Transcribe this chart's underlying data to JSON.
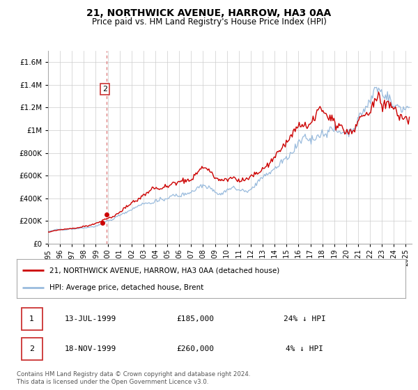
{
  "title": "21, NORTHWICK AVENUE, HARROW, HA3 0AA",
  "subtitle": "Price paid vs. HM Land Registry's House Price Index (HPI)",
  "legend_label_red": "21, NORTHWICK AVENUE, HARROW, HA3 0AA (detached house)",
  "legend_label_blue": "HPI: Average price, detached house, Brent",
  "transaction1_date": "13-JUL-1999",
  "transaction1_price": "£185,000",
  "transaction1_hpi": "24% ↓ HPI",
  "transaction2_date": "18-NOV-1999",
  "transaction2_price": "£260,000",
  "transaction2_hpi": "4% ↓ HPI",
  "footnote1": "Contains HM Land Registry data © Crown copyright and database right 2024.",
  "footnote2": "This data is licensed under the Open Government Licence v3.0.",
  "xmin_year": 1995.0,
  "xmax_year": 2025.5,
  "ymin": 0,
  "ymax": 1700000,
  "yticks": [
    0,
    200000,
    400000,
    600000,
    800000,
    1000000,
    1200000,
    1400000,
    1600000
  ],
  "ytick_labels": [
    "£0",
    "£200K",
    "£400K",
    "£600K",
    "£800K",
    "£1M",
    "£1.2M",
    "£1.4M",
    "£1.6M"
  ],
  "red_color": "#cc0000",
  "blue_color": "#99bbdd",
  "dotted_line_color": "#e08080",
  "marker1_year": 1999.53,
  "marker2_year": 1999.88,
  "marker1_value": 185000,
  "marker2_value": 260000,
  "background_color": "#ffffff",
  "grid_color": "#cccccc",
  "xticks": [
    1995,
    1996,
    1997,
    1998,
    1999,
    2000,
    2001,
    2002,
    2003,
    2004,
    2005,
    2006,
    2007,
    2008,
    2009,
    2010,
    2011,
    2012,
    2013,
    2014,
    2015,
    2016,
    2017,
    2018,
    2019,
    2020,
    2021,
    2022,
    2023,
    2024,
    2025
  ]
}
